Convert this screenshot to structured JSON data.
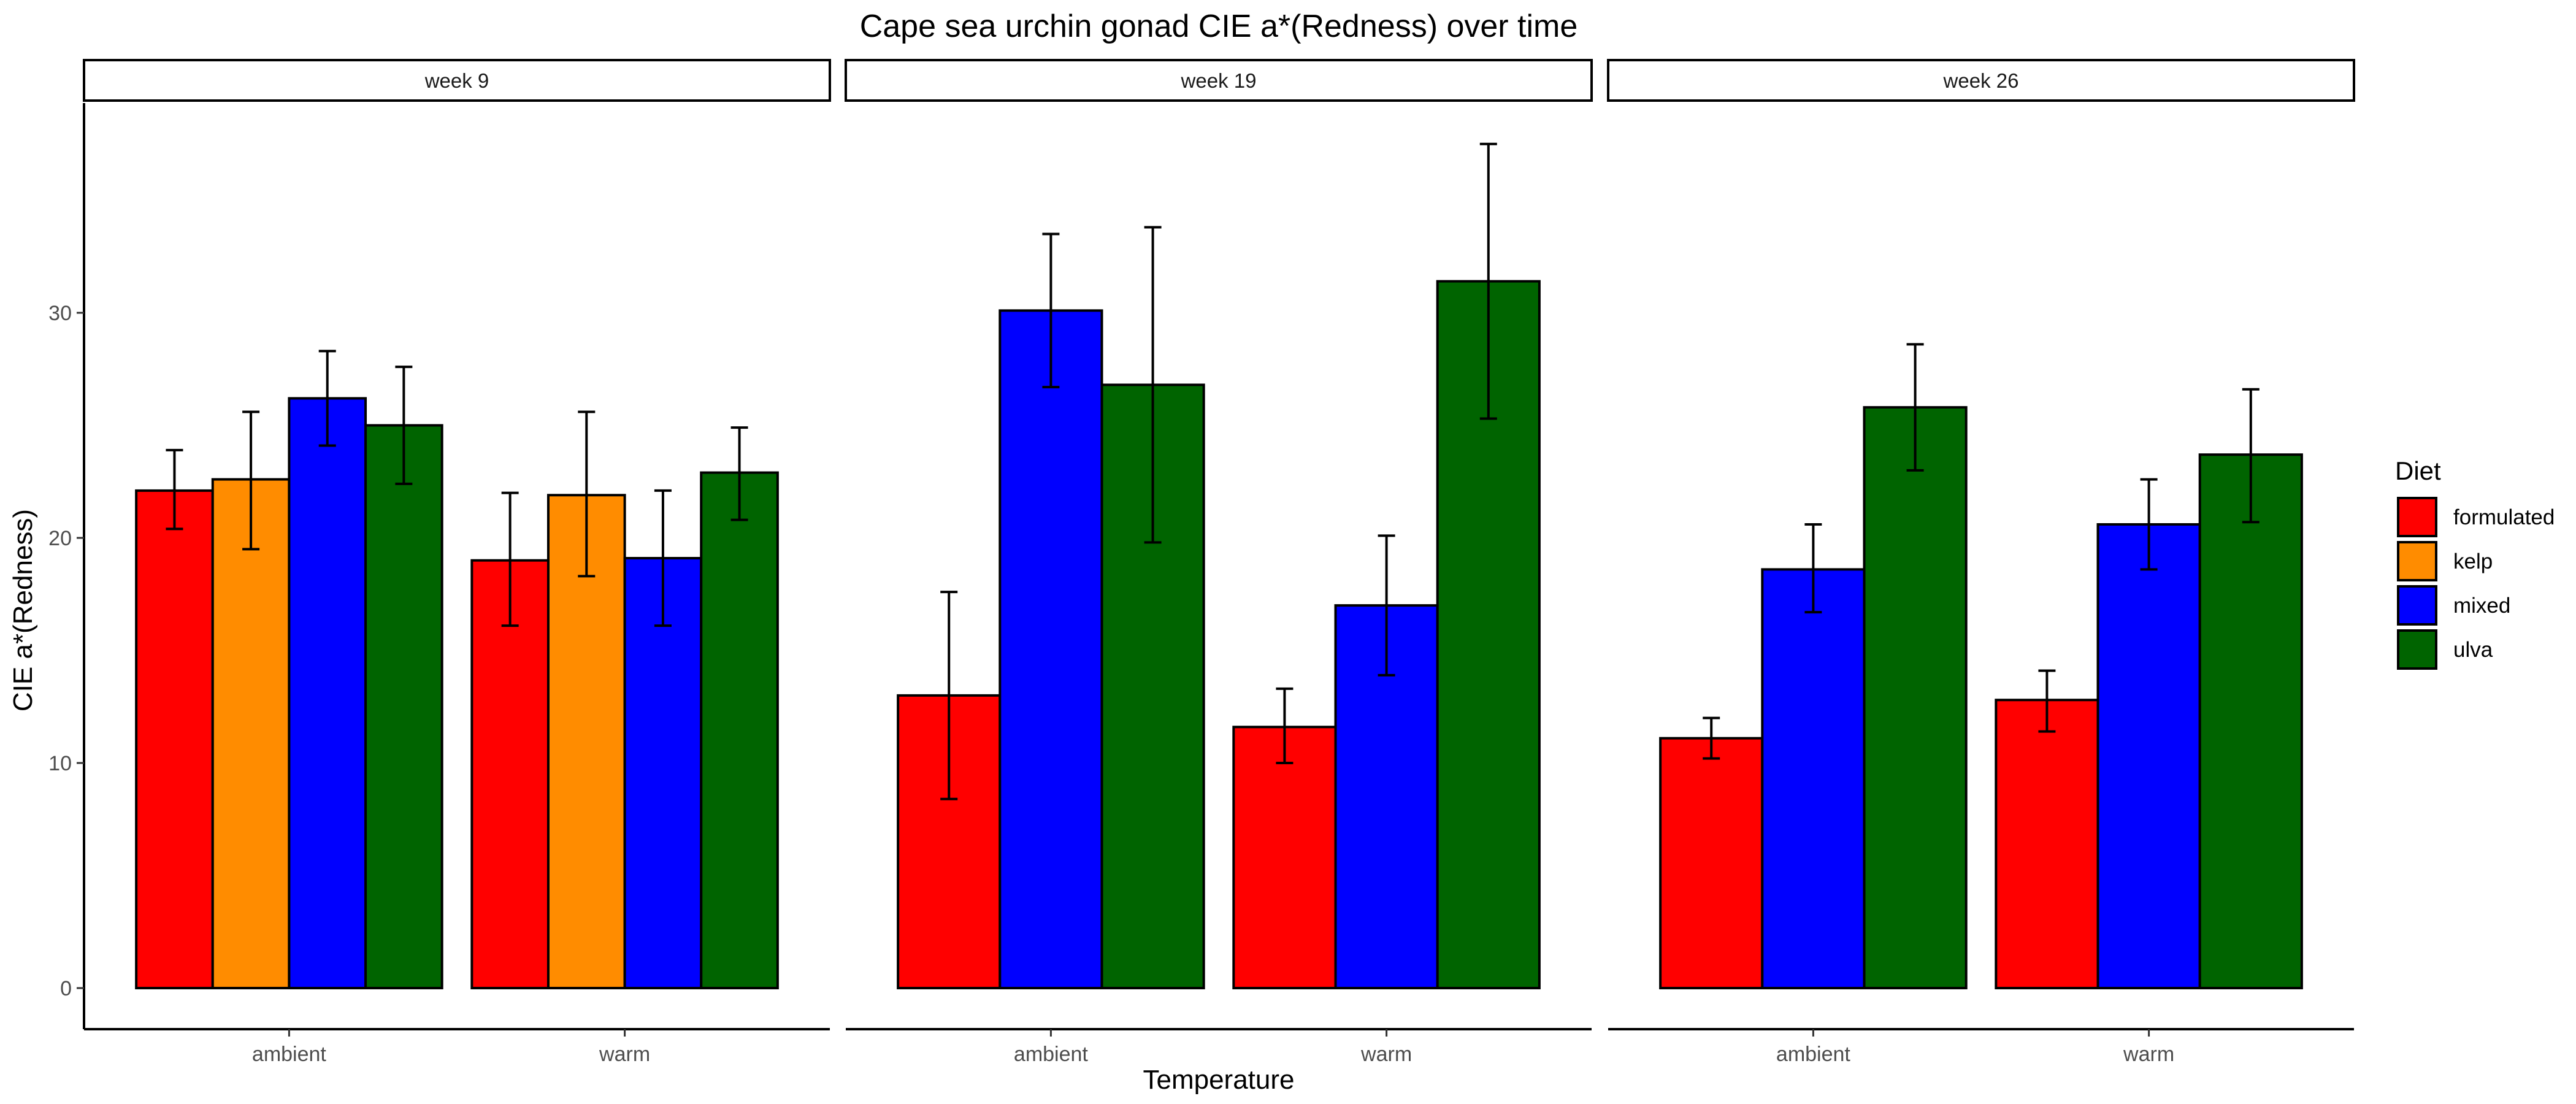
{
  "chart_data": {
    "type": "bar",
    "title": "Cape sea urchin gonad CIE a*(Redness) over time",
    "xlabel": "Temperature",
    "ylabel": "CIE a*(Redness)",
    "ylim": [
      0,
      39
    ],
    "yticks": [
      0,
      10,
      20,
      30
    ],
    "grid": false,
    "legend": {
      "title": "Diet",
      "placement": "right",
      "items": [
        {
          "name": "formulated",
          "color": "#FF0000"
        },
        {
          "name": "kelp",
          "color": "#FF8C00"
        },
        {
          "name": "mixed",
          "color": "#0000FF"
        },
        {
          "name": "ulva",
          "color": "#006400"
        }
      ]
    },
    "panels": [
      {
        "label": "week 9",
        "categories": [
          "ambient",
          "warm"
        ],
        "series": [
          {
            "name": "formulated",
            "values": [
              22.1,
              19.0
            ],
            "err_low": [
              20.4,
              16.1
            ],
            "err_high": [
              23.9,
              22.0
            ]
          },
          {
            "name": "kelp",
            "values": [
              22.6,
              21.9
            ],
            "err_low": [
              19.5,
              18.3
            ],
            "err_high": [
              25.6,
              25.6
            ]
          },
          {
            "name": "mixed",
            "values": [
              26.2,
              19.1
            ],
            "err_low": [
              24.1,
              16.1
            ],
            "err_high": [
              28.3,
              22.1
            ]
          },
          {
            "name": "ulva",
            "values": [
              25.0,
              22.9
            ],
            "err_low": [
              22.4,
              20.8
            ],
            "err_high": [
              27.6,
              24.9
            ]
          }
        ]
      },
      {
        "label": "week 19",
        "categories": [
          "ambient",
          "warm"
        ],
        "series": [
          {
            "name": "formulated",
            "values": [
              13.0,
              11.6
            ],
            "err_low": [
              8.4,
              10.0
            ],
            "err_high": [
              17.6,
              13.3
            ]
          },
          {
            "name": "mixed",
            "values": [
              30.1,
              17.0
            ],
            "err_low": [
              26.7,
              13.9
            ],
            "err_high": [
              33.5,
              20.1
            ]
          },
          {
            "name": "ulva",
            "values": [
              26.8,
              31.4
            ],
            "err_low": [
              19.8,
              25.3
            ],
            "err_high": [
              33.8,
              37.5
            ]
          }
        ]
      },
      {
        "label": "week 26",
        "categories": [
          "ambient",
          "warm"
        ],
        "series": [
          {
            "name": "formulated",
            "values": [
              11.1,
              12.8
            ],
            "err_low": [
              10.2,
              11.4
            ],
            "err_high": [
              12.0,
              14.1
            ]
          },
          {
            "name": "mixed",
            "values": [
              18.6,
              20.6
            ],
            "err_low": [
              16.7,
              18.6
            ],
            "err_high": [
              20.6,
              22.6
            ]
          },
          {
            "name": "ulva",
            "values": [
              25.8,
              23.7
            ],
            "err_low": [
              23.0,
              20.7
            ],
            "err_high": [
              28.6,
              26.6
            ]
          }
        ]
      }
    ]
  }
}
